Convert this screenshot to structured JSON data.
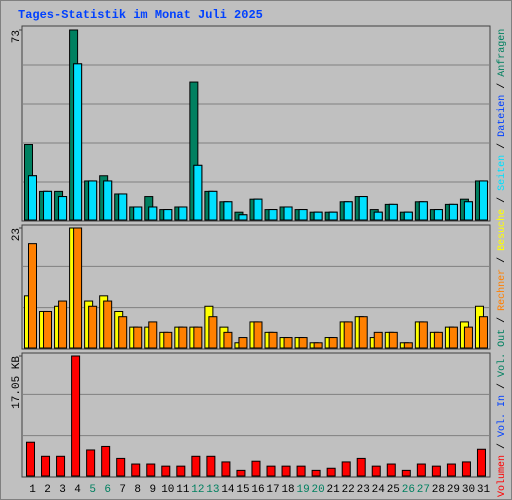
{
  "title": "Tages-Statistik im Monat Juli 2025",
  "legend_separator": " / ",
  "days": [
    "1",
    "2",
    "3",
    "4",
    "5",
    "6",
    "7",
    "8",
    "9",
    "10",
    "11",
    "12",
    "13",
    "14",
    "15",
    "16",
    "17",
    "18",
    "19",
    "20",
    "21",
    "22",
    "23",
    "24",
    "25",
    "26",
    "27",
    "28",
    "29",
    "30",
    "31"
  ],
  "weekends": [
    5,
    6,
    12,
    13,
    19,
    20,
    26,
    27
  ],
  "weekday_color": "#000000",
  "weekend_color": "#008060",
  "chart_data": [
    {
      "type": "bar",
      "ylim": [
        0,
        73
      ],
      "yticks": [
        73
      ],
      "series": [
        {
          "name": "Anfragen",
          "color": "#008060",
          "values": [
            29,
            11,
            11,
            73,
            15,
            17,
            10,
            5,
            9,
            4,
            5,
            53,
            11,
            7,
            3,
            8,
            4,
            5,
            4,
            3,
            3,
            7,
            9,
            4,
            6,
            3,
            7,
            4,
            6,
            8,
            15
          ]
        },
        {
          "name": "Dateien",
          "color": "#0040ff",
          "values": [
            17,
            11,
            9,
            60,
            15,
            15,
            10,
            5,
            5,
            4,
            5,
            21,
            11,
            7,
            2,
            8,
            4,
            5,
            4,
            3,
            3,
            7,
            9,
            3,
            6,
            3,
            7,
            4,
            6,
            7,
            15
          ]
        },
        {
          "name": "Seiten",
          "color": "#00e0ff",
          "values": [
            17,
            11,
            9,
            60,
            15,
            15,
            10,
            5,
            5,
            4,
            5,
            21,
            11,
            7,
            2,
            8,
            4,
            5,
            4,
            3,
            3,
            7,
            9,
            3,
            6,
            3,
            7,
            4,
            6,
            7,
            15
          ]
        }
      ]
    },
    {
      "type": "bar",
      "ylim": [
        0,
        23
      ],
      "yticks": [
        23
      ],
      "series": [
        {
          "name": "Besuche",
          "color": "#ffff00",
          "values": [
            10,
            7,
            8,
            23,
            9,
            10,
            7,
            4,
            4,
            3,
            4,
            4,
            8,
            4,
            1,
            5,
            3,
            2,
            2,
            1,
            2,
            5,
            6,
            2,
            3,
            1,
            5,
            3,
            4,
            5,
            8
          ]
        },
        {
          "name": "Rechner",
          "color": "#ff8000",
          "values": [
            20,
            7,
            9,
            23,
            8,
            9,
            6,
            4,
            5,
            3,
            4,
            4,
            6,
            3,
            2,
            5,
            3,
            2,
            2,
            1,
            2,
            5,
            6,
            3,
            3,
            1,
            5,
            3,
            4,
            4,
            6
          ]
        }
      ]
    },
    {
      "type": "bar",
      "ylim": [
        0,
        17.05
      ],
      "yticks": [
        {
          "value": 17.05,
          "label": "17.05 KB"
        }
      ],
      "series": [
        {
          "name": "Volumen",
          "color": "#ff0000",
          "values": [
            4.8,
            2.8,
            2.8,
            17.05,
            3.7,
            4.2,
            2.5,
            1.7,
            1.7,
            1.4,
            1.4,
            2.8,
            2.8,
            2.0,
            0.8,
            2.1,
            1.4,
            1.4,
            1.4,
            0.8,
            1.1,
            2.0,
            2.5,
            1.4,
            1.7,
            0.8,
            1.7,
            1.4,
            1.7,
            2.0,
            3.8
          ]
        }
      ],
      "legend_extra": [
        {
          "name": "Vol. In",
          "color": "#0040ff"
        },
        {
          "name": "Vol. Out",
          "color": "#008060"
        }
      ]
    }
  ]
}
